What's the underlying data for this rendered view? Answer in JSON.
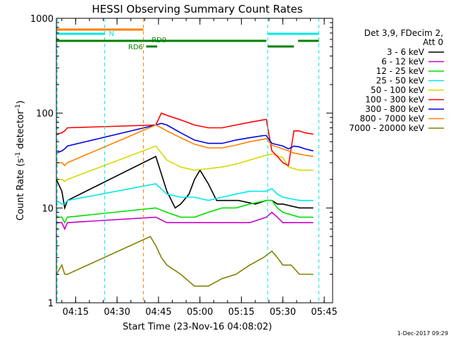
{
  "chart_data": {
    "type": "line",
    "title": "HESSI Observing Summary Count Rates",
    "xlabel": "Start Time (23-Nov-16 04:08:02)",
    "ylabel_main": "Count Rate (s",
    "ylabel_sup1": "-1",
    "ylabel_mid": " detector",
    "ylabel_sup2": "-1",
    "ylabel_end": ")",
    "y_scale": "log",
    "ylim": [
      1,
      1000
    ],
    "xlim_minutes": [
      0,
      100
    ],
    "x_ticks": [
      {
        "label": "04:15",
        "minute": 6.97
      },
      {
        "label": "04:30",
        "minute": 21.97
      },
      {
        "label": "04:45",
        "minute": 36.97
      },
      {
        "label": "05:00",
        "minute": 51.97
      },
      {
        "label": "05:15",
        "minute": 66.97
      },
      {
        "label": "05:30",
        "minute": 81.97
      },
      {
        "label": "05:45",
        "minute": 96.97
      }
    ],
    "y_ticks": [
      {
        "label": "1",
        "value": 1
      },
      {
        "label": "10",
        "value": 10
      },
      {
        "label": "100",
        "value": 100
      },
      {
        "label": "1000",
        "value": 1000
      }
    ],
    "legend_header": [
      "Det 3,9, FDecim 2,",
      "Att 0"
    ],
    "legend_placement": "right",
    "series": [
      {
        "name": "3 - 6 keV",
        "color": "#000000",
        "x": [
          0,
          2,
          3,
          4,
          36,
          40,
          43,
          45,
          48,
          50,
          52,
          55,
          58,
          62,
          66,
          72,
          76,
          78,
          80,
          82,
          88,
          90,
          93
        ],
        "y": [
          20,
          15,
          10,
          12,
          35,
          15,
          10,
          11,
          14,
          20,
          25,
          18,
          12,
          12,
          12,
          11,
          12,
          12,
          11,
          11,
          10,
          10,
          10
        ]
      },
      {
        "name": "6 - 12 keV",
        "color": "#c800c8",
        "x": [
          0,
          2,
          3,
          4,
          36,
          40,
          45,
          50,
          55,
          60,
          65,
          70,
          76,
          78,
          80,
          82,
          88,
          90,
          93
        ],
        "y": [
          7,
          7,
          6,
          7,
          8,
          7,
          7,
          7,
          7,
          7,
          7,
          7,
          8,
          9,
          8,
          7,
          7,
          7,
          7
        ]
      },
      {
        "name": "12 - 25 keV",
        "color": "#00e000",
        "x": [
          0,
          2,
          3,
          4,
          36,
          40,
          45,
          50,
          55,
          60,
          65,
          70,
          76,
          78,
          80,
          82,
          88,
          90,
          93
        ],
        "y": [
          8,
          8,
          7,
          8,
          10,
          9,
          8,
          8,
          9,
          10,
          10,
          11,
          12,
          12,
          10,
          9,
          8,
          8,
          8
        ]
      },
      {
        "name": "25 - 50 keV",
        "color": "#00e8e8",
        "x": [
          0,
          2,
          3,
          4,
          36,
          40,
          45,
          50,
          55,
          60,
          65,
          70,
          76,
          78,
          80,
          82,
          88,
          90,
          93
        ],
        "y": [
          12,
          11,
          11,
          12,
          18,
          14,
          13,
          13,
          12,
          13,
          14,
          15,
          15,
          16,
          14,
          13,
          12,
          12,
          12
        ]
      },
      {
        "name": "50 - 100 keV",
        "color": "#d8d800",
        "x": [
          0,
          2,
          3,
          4,
          36,
          40,
          45,
          50,
          55,
          60,
          65,
          70,
          76,
          78,
          82,
          84,
          86,
          88,
          90,
          93
        ],
        "y": [
          20,
          20,
          19,
          20,
          45,
          32,
          27,
          25,
          26,
          27,
          29,
          32,
          36,
          37,
          34,
          27,
          26,
          25,
          25,
          25
        ]
      },
      {
        "name": "100 - 300 keV",
        "color": "#ff0000",
        "x": [
          0,
          2,
          3,
          4,
          36,
          38,
          40,
          45,
          50,
          55,
          60,
          65,
          70,
          75,
          76,
          78,
          80,
          82,
          84,
          86,
          88,
          90,
          93
        ],
        "y": [
          60,
          62,
          65,
          70,
          75,
          100,
          95,
          85,
          75,
          70,
          70,
          75,
          80,
          85,
          86,
          40,
          35,
          30,
          28,
          65,
          65,
          62,
          60
        ]
      },
      {
        "name": "300 - 800 keV",
        "color": "#0000e0",
        "x": [
          0,
          2,
          3,
          4,
          36,
          38,
          40,
          45,
          50,
          55,
          60,
          65,
          70,
          75,
          76,
          78,
          82,
          84,
          86,
          88,
          90,
          93
        ],
        "y": [
          38,
          40,
          42,
          45,
          75,
          78,
          75,
          62,
          52,
          48,
          48,
          52,
          55,
          58,
          58,
          48,
          45,
          42,
          45,
          44,
          42,
          40
        ]
      },
      {
        "name": "800 - 7000 keV",
        "color": "#ff8000",
        "x": [
          0,
          2,
          3,
          4,
          36,
          38,
          40,
          45,
          50,
          55,
          60,
          65,
          70,
          75,
          76,
          78,
          82,
          84,
          86,
          88,
          90,
          93
        ],
        "y": [
          30,
          30,
          28,
          30,
          75,
          70,
          65,
          55,
          47,
          43,
          43,
          46,
          50,
          53,
          54,
          46,
          42,
          40,
          38,
          37,
          36,
          35
        ]
      },
      {
        "name": "7000 - 20000 keV",
        "color": "#808000",
        "x": [
          0,
          2,
          3,
          4,
          34,
          36,
          38,
          40,
          45,
          50,
          55,
          60,
          65,
          70,
          75,
          78,
          80,
          82,
          85,
          88,
          90,
          93
        ],
        "y": [
          2,
          2.5,
          2,
          2,
          5,
          4,
          3,
          2.5,
          2,
          1.5,
          1.5,
          1.8,
          2,
          2.5,
          3,
          3.5,
          3,
          2.5,
          2.5,
          2,
          2,
          2
        ]
      }
    ],
    "annotations": {
      "attenuator_bars": [
        {
          "color": "#ff8000",
          "x_start": 0,
          "x_end": 31.5,
          "level": 1
        },
        {
          "color": "#00e8e8",
          "x_start": 0,
          "x_end": 17.5,
          "level": 2
        },
        {
          "color": "#00e8e8",
          "x_start": 76.5,
          "x_end": 95,
          "level": 2
        }
      ],
      "green_bars": [
        {
          "x_start": 0,
          "x_end": 76,
          "level": 3
        },
        {
          "x_start": 32.5,
          "x_end": 36.5,
          "level": 4
        },
        {
          "x_start": 76.5,
          "x_end": 86,
          "level": 4
        },
        {
          "x_start": 87.5,
          "x_end": 95,
          "level": 3
        }
      ],
      "labels": [
        {
          "text": "N",
          "color": "#00e8e8",
          "x": 19
        },
        {
          "text": "RD6",
          "color": "#008000",
          "x": 26
        },
        {
          "text": "RD9",
          "color": "#008000",
          "x": 34.5
        }
      ],
      "vlines": [
        {
          "x": 0.3,
          "color": "#00e8e8"
        },
        {
          "x": 17.5,
          "color": "#00e8e8"
        },
        {
          "x": 31.5,
          "color": "#ff8000"
        },
        {
          "x": 76.5,
          "color": "#00e8e8"
        },
        {
          "x": 95,
          "color": "#00e8e8"
        }
      ]
    }
  },
  "footer": {
    "timestamp": "1-Dec-2017 09:29"
  }
}
